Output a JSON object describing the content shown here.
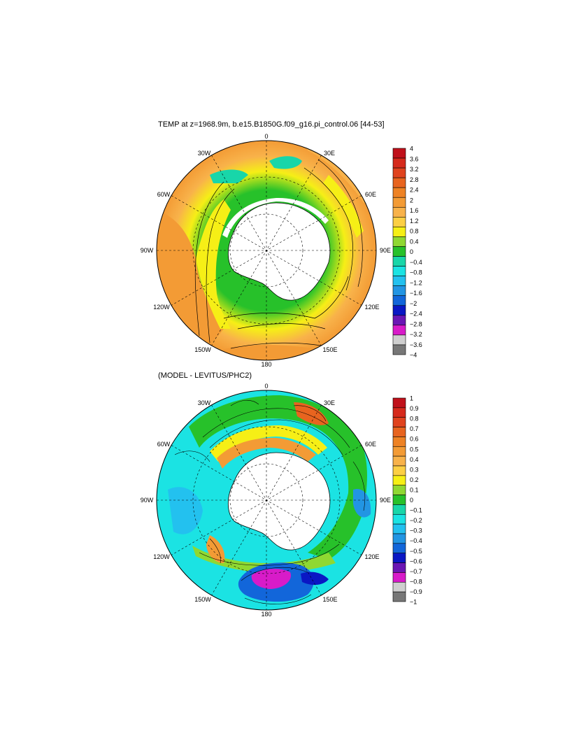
{
  "panels": [
    {
      "title": "TEMP at z=1968.9m, b.e15.B1850G.f09_g16.pi_control.06 [44-53]",
      "lon_labels": {
        "top": "0",
        "upper_left": "30W",
        "upper_right": "30E",
        "left_upper": "60W",
        "right_upper": "60E",
        "left": "90W",
        "right": "90E",
        "left_lower": "120W",
        "right_lower": "120E",
        "lower_left": "150W",
        "lower_right": "150E",
        "bottom": "180"
      },
      "colorbar": {
        "labels": [
          "4",
          "3.6",
          "3.2",
          "2.8",
          "2.4",
          "2",
          "1.6",
          "1.2",
          "0.8",
          "0.4",
          "0",
          "−0.4",
          "−0.8",
          "−1.2",
          "−1.6",
          "−2",
          "−2.4",
          "−2.8",
          "−3.2",
          "−3.6",
          "−4"
        ],
        "colors": [
          "#c0111b",
          "#d62a1c",
          "#e0431e",
          "#e8641f",
          "#ee8224",
          "#f39b35",
          "#f8b24a",
          "#fccf44",
          "#f6ef16",
          "#8fd832",
          "#27c12a",
          "#18d6a9",
          "#1be3e3",
          "#23c1ef",
          "#2295e3",
          "#1266da",
          "#0a17c4",
          "#6a16b4",
          "#d81bc9",
          "#cfcfcf",
          "#777777"
        ]
      }
    },
    {
      "title": "(MODEL - LEVITUS/PHC2)",
      "lon_labels": {
        "top": "0",
        "upper_left": "30W",
        "upper_right": "30E",
        "left_upper": "60W",
        "right_upper": "60E",
        "left": "90W",
        "right": "90E",
        "left_lower": "120W",
        "right_lower": "120E",
        "lower_left": "150W",
        "lower_right": "150E",
        "bottom": "180"
      },
      "colorbar": {
        "labels": [
          "1",
          "0.9",
          "0.8",
          "0.7",
          "0.6",
          "0.5",
          "0.4",
          "0.3",
          "0.2",
          "0.1",
          "0",
          "−0.1",
          "−0.2",
          "−0.3",
          "−0.4",
          "−0.5",
          "−0.6",
          "−0.7",
          "−0.8",
          "−0.9",
          "−1"
        ],
        "colors": [
          "#c0111b",
          "#d62a1c",
          "#e0431e",
          "#e8641f",
          "#ee8224",
          "#f39b35",
          "#f8b24a",
          "#fccf44",
          "#f6ef16",
          "#8fd832",
          "#27c12a",
          "#18d6a9",
          "#1be3e3",
          "#23c1ef",
          "#2295e3",
          "#1266da",
          "#0a17c4",
          "#6a16b4",
          "#d81bc9",
          "#cfcfcf",
          "#777777"
        ]
      }
    }
  ]
}
